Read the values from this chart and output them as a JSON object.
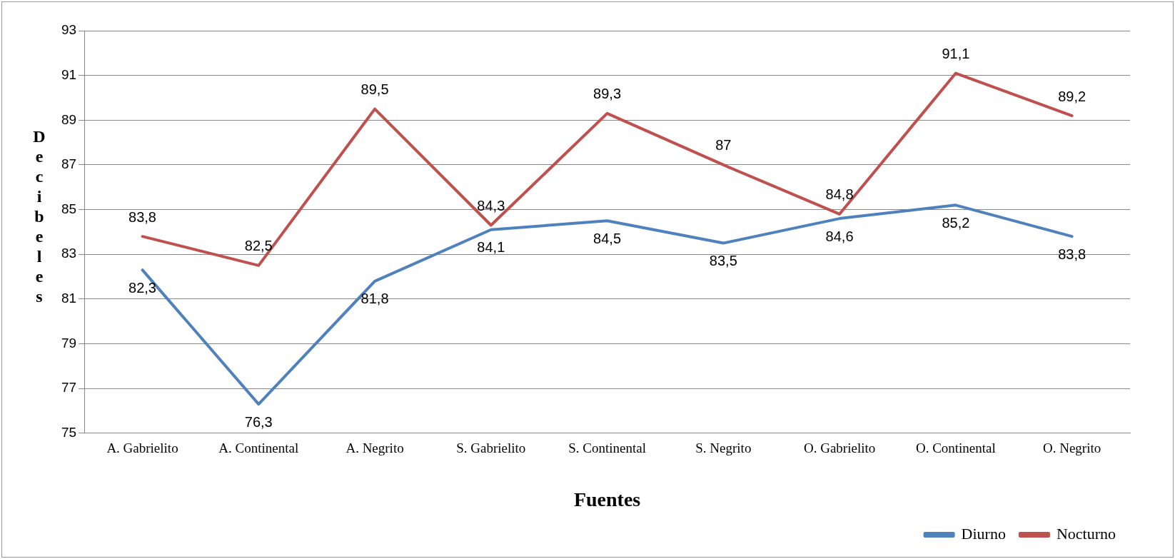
{
  "chart_data": {
    "type": "line",
    "xlabel": "Fuentes",
    "ylabel": "Decibeles",
    "categories": [
      "A. Gabrielito",
      "A. Continental",
      "A. Negrito",
      "S. Gabrielito",
      "S. Continental",
      "S. Negrito",
      "O. Gabrielito",
      "O. Continental",
      "O. Negrito"
    ],
    "series": [
      {
        "name": "Diurno",
        "color": "#4f81bd",
        "values": [
          82.3,
          76.3,
          81.8,
          84.1,
          84.5,
          83.5,
          84.6,
          85.2,
          83.8
        ],
        "value_labels": [
          "82,3",
          "76,3",
          "81,8",
          "84,1",
          "84,5",
          "83,5",
          "84,6",
          "85,2",
          "83,8"
        ]
      },
      {
        "name": "Nocturno",
        "color": "#c0504d",
        "values": [
          83.8,
          82.5,
          89.5,
          84.3,
          89.3,
          87,
          84.8,
          91.1,
          89.2
        ],
        "value_labels": [
          "83,8",
          "82,5",
          "89,5",
          "84,3",
          "89,3",
          "87",
          "84,8",
          "91,1",
          "89,2"
        ]
      }
    ],
    "ylim": [
      75,
      93
    ],
    "yticks": [
      75,
      77,
      79,
      81,
      83,
      85,
      87,
      89,
      91,
      93
    ],
    "grid": "y",
    "legend": "bottom right",
    "marker": "none",
    "line_style": "solid"
  }
}
